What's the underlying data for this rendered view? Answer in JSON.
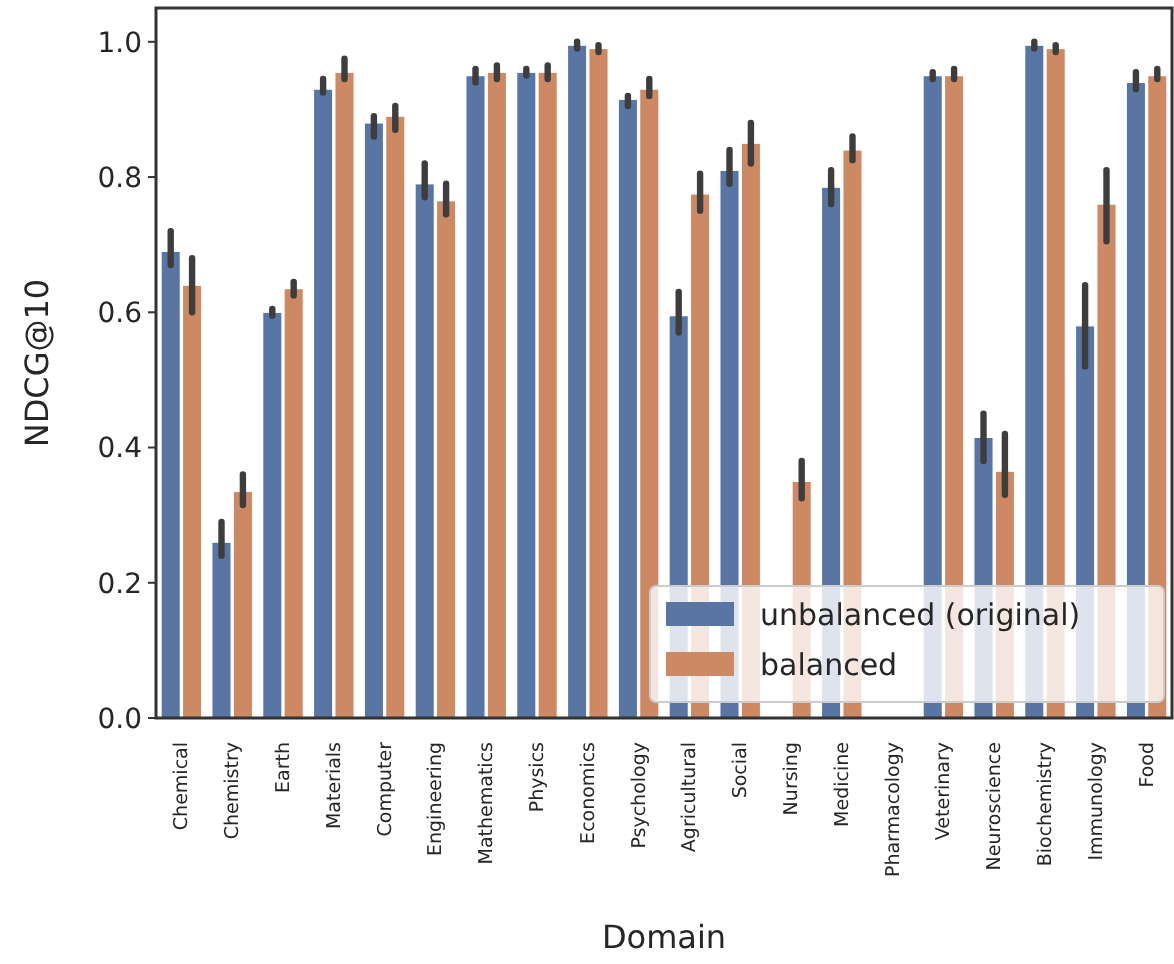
{
  "chart_data": {
    "type": "bar",
    "xlabel": "Domain",
    "ylabel": "NDCG@10",
    "categories": [
      "Chemical",
      "Chemistry",
      "Earth",
      "Materials",
      "Computer",
      "Engineering",
      "Mathematics",
      "Physics",
      "Economics",
      "Psychology",
      "Agricultural",
      "Social",
      "Nursing",
      "Medicine",
      "Pharmacology",
      "Veterinary",
      "Neuroscience",
      "Biochemistry",
      "Immunology",
      "Food"
    ],
    "series": [
      {
        "name": "unbalanced (original)",
        "color": "#5975a4",
        "values": [
          0.69,
          0.26,
          0.6,
          0.93,
          0.88,
          0.79,
          0.95,
          0.955,
          0.995,
          0.915,
          0.595,
          0.81,
          null,
          0.785,
          0,
          0.95,
          0.415,
          0.995,
          0.58,
          0.94
        ],
        "errors": [
          [
            0.67,
            0.72
          ],
          [
            0.24,
            0.29
          ],
          [
            0.595,
            0.605
          ],
          [
            0.925,
            0.945
          ],
          [
            0.86,
            0.89
          ],
          [
            0.77,
            0.82
          ],
          [
            0.94,
            0.96
          ],
          [
            0.95,
            0.96
          ],
          [
            0.99,
            1.0
          ],
          [
            0.905,
            0.92
          ],
          [
            0.57,
            0.63
          ],
          [
            0.79,
            0.84
          ],
          null,
          [
            0.76,
            0.81
          ],
          null,
          [
            0.945,
            0.955
          ],
          [
            0.38,
            0.45
          ],
          [
            0.99,
            1.0
          ],
          [
            0.52,
            0.64
          ],
          [
            0.93,
            0.955
          ]
        ]
      },
      {
        "name": "balanced",
        "color": "#cc8963",
        "values": [
          0.64,
          0.335,
          0.635,
          0.955,
          0.89,
          0.765,
          0.955,
          0.955,
          0.99,
          0.93,
          0.775,
          0.85,
          0.35,
          0.84,
          0,
          0.95,
          0.365,
          0.99,
          0.76,
          0.95
        ],
        "errors": [
          [
            0.6,
            0.68
          ],
          [
            0.315,
            0.36
          ],
          [
            0.625,
            0.645
          ],
          [
            0.945,
            0.975
          ],
          [
            0.87,
            0.905
          ],
          [
            0.745,
            0.79
          ],
          [
            0.945,
            0.965
          ],
          [
            0.945,
            0.965
          ],
          [
            0.985,
            0.995
          ],
          [
            0.92,
            0.945
          ],
          [
            0.75,
            0.805
          ],
          [
            0.82,
            0.88
          ],
          [
            0.325,
            0.38
          ],
          [
            0.825,
            0.86
          ],
          null,
          [
            0.945,
            0.96
          ],
          [
            0.33,
            0.42
          ],
          [
            0.985,
            0.995
          ],
          [
            0.705,
            0.81
          ],
          [
            0.945,
            0.96
          ]
        ]
      }
    ],
    "ylim": [
      0,
      1.05
    ],
    "yticks": [
      {
        "value": 0,
        "label": "0.0"
      },
      {
        "value": 0.2,
        "label": "0.2"
      },
      {
        "value": 0.4,
        "label": "0.4"
      },
      {
        "value": 0.6,
        "label": "0.6"
      },
      {
        "value": 0.8,
        "label": "0.8"
      },
      {
        "value": 1,
        "label": "1.0"
      }
    ],
    "grid": false,
    "legend": "bottom right"
  }
}
